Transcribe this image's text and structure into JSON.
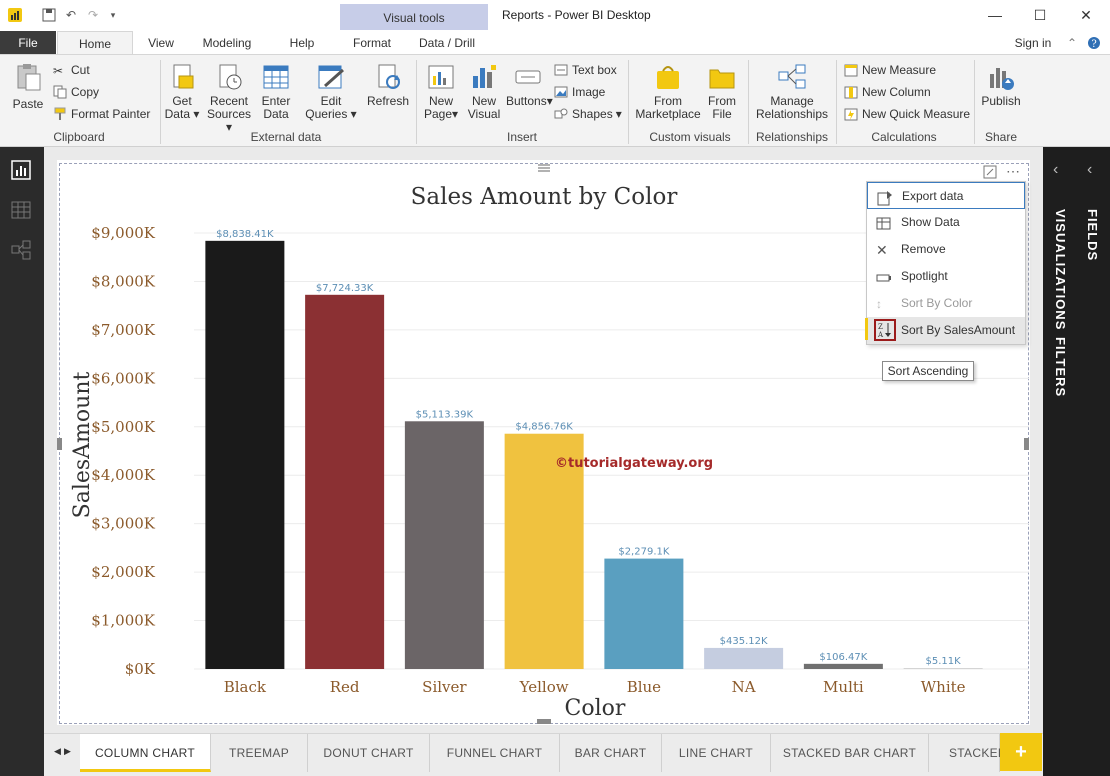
{
  "window": {
    "title": "Reports - Power BI Desktop",
    "context_group": "Visual tools",
    "sign_in": "Sign in"
  },
  "ribbon_tabs": [
    "File",
    "Home",
    "View",
    "Modeling",
    "Help",
    "Format",
    "Data / Drill"
  ],
  "ribbon": {
    "clipboard": {
      "paste": "Paste",
      "cut": "Cut",
      "copy": "Copy",
      "format_painter": "Format Painter",
      "label": "Clipboard"
    },
    "external_data": {
      "get_data": [
        "Get",
        "Data"
      ],
      "recent_sources": [
        "Recent",
        "Sources"
      ],
      "enter_data": [
        "Enter",
        "Data"
      ],
      "edit_queries": [
        "Edit",
        "Queries"
      ],
      "refresh": "Refresh",
      "label": "External data"
    },
    "insert": {
      "new_page": [
        "New",
        "Page"
      ],
      "new_visual": [
        "New",
        "Visual"
      ],
      "buttons": "Buttons",
      "text_box": "Text box",
      "image": "Image",
      "shapes": "Shapes",
      "label": "Insert"
    },
    "custom_visuals": {
      "from_marketplace": [
        "From",
        "Marketplace"
      ],
      "from_file": [
        "From",
        "File"
      ],
      "label": "Custom visuals"
    },
    "relationships": {
      "manage": [
        "Manage",
        "Relationships"
      ],
      "label": "Relationships"
    },
    "calculations": {
      "new_measure": "New Measure",
      "new_column": "New Column",
      "new_quick_measure": "New Quick Measure",
      "label": "Calculations"
    },
    "share": {
      "publish": "Publish",
      "label": "Share"
    }
  },
  "right_pane": {
    "fields": "FIELDS",
    "visualizations": "VISUALIZATIONS",
    "filters": "FILTERS"
  },
  "context_menu": {
    "items": [
      "Export data",
      "Show Data",
      "Remove",
      "Spotlight",
      "Sort By Color",
      "Sort By SalesAmount"
    ]
  },
  "tooltip": "Sort Ascending",
  "watermark": "©tutorialgateway.org",
  "page_tabs": [
    "COLUMN CHART",
    "TREEMAP",
    "DONUT CHART",
    "FUNNEL CHART",
    "BAR CHART",
    "LINE CHART",
    "STACKED BAR CHART",
    "STACKED"
  ],
  "colors": {
    "accent": "#f2c811",
    "highlight_box": "#9b1b1b"
  },
  "chart_data": {
    "type": "bar",
    "title": "Sales Amount by Color",
    "xlabel": "Color",
    "ylabel": "SalesAmount",
    "categories": [
      "Black",
      "Red",
      "Silver",
      "Yellow",
      "Blue",
      "NA",
      "Multi",
      "White"
    ],
    "values": [
      8838.41,
      7724.33,
      5113.39,
      4856.76,
      2279.1,
      435.12,
      106.47,
      5.11
    ],
    "data_labels": [
      "$8,838.41K",
      "$7,724.33K",
      "$5,113.39K",
      "$4,856.76K",
      "$2,279.1K",
      "$435.12K",
      "$106.47K",
      "$5.11K"
    ],
    "bar_colors": [
      "#1a1a1a",
      "#8b3033",
      "#6b6567",
      "#f0c23f",
      "#5a9fc0",
      "#c5cde0",
      "#707070",
      "#d4d4d4"
    ],
    "yticks": [
      0,
      1000,
      2000,
      3000,
      4000,
      5000,
      6000,
      7000,
      8000,
      9000
    ],
    "ytick_labels": [
      "$0K",
      "$1,000K",
      "$2,000K",
      "$3,000K",
      "$4,000K",
      "$5,000K",
      "$6,000K",
      "$7,000K",
      "$8,000K",
      "$9,000K"
    ],
    "ylim": [
      0,
      9300
    ],
    "grid": true
  }
}
